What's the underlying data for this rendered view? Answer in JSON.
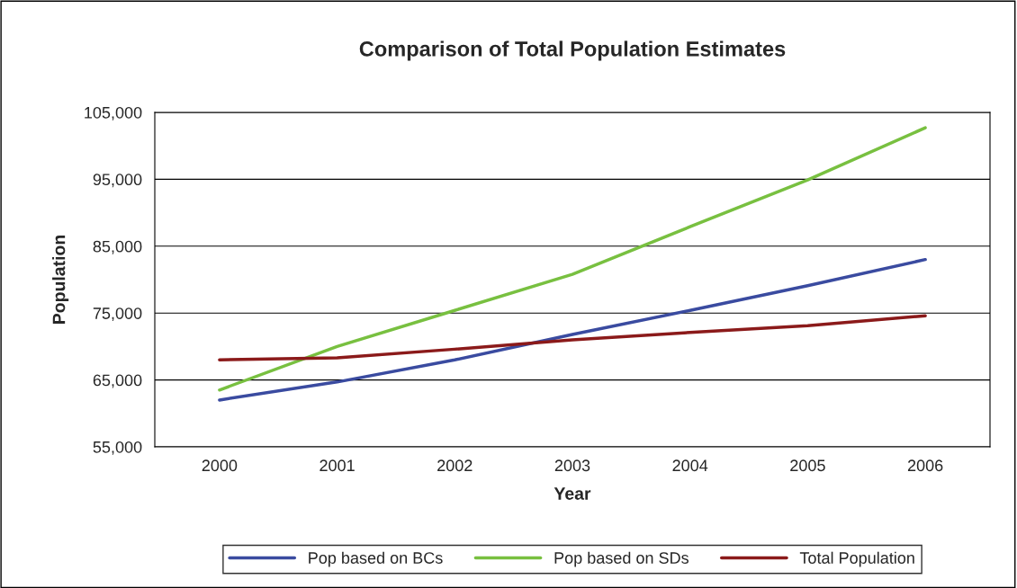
{
  "chart_data": {
    "type": "line",
    "title": "Comparison of Total Population Estimates",
    "xlabel": "Year",
    "ylabel": "Population",
    "categories": [
      "2000",
      "2001",
      "2002",
      "2003",
      "2004",
      "2005",
      "2006"
    ],
    "series": [
      {
        "name": "Pop based on BCs",
        "color": "#3a4ba0",
        "values": [
          62000,
          64700,
          68000,
          71800,
          75400,
          79100,
          83000
        ]
      },
      {
        "name": "Pop based on SDs",
        "color": "#78c040",
        "values": [
          63500,
          70000,
          75400,
          80800,
          87900,
          94900,
          102700
        ]
      },
      {
        "name": "Total Population",
        "color": "#8b1a1a",
        "values": [
          68000,
          68300,
          69600,
          71000,
          72100,
          73100,
          74600
        ]
      }
    ],
    "ylim": [
      55000,
      105000
    ],
    "yticks": [
      {
        "value": 55000,
        "label": "55,000"
      },
      {
        "value": 65000,
        "label": "65,000"
      },
      {
        "value": 75000,
        "label": "75,000"
      },
      {
        "value": 85000,
        "label": "85,000"
      },
      {
        "value": 95000,
        "label": "95,000"
      },
      {
        "value": 105000,
        "label": "105,000"
      }
    ],
    "grid": "y",
    "legend": "bottom",
    "marker": "none",
    "line_style": "solid"
  }
}
